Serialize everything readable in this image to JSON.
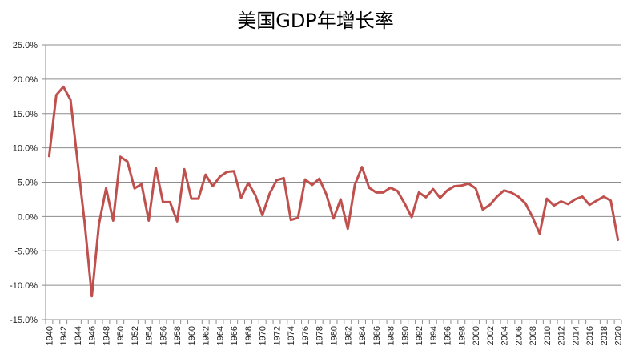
{
  "chart_data": {
    "type": "line",
    "title": "美国GDP年增长率",
    "xlabel": "",
    "ylabel": "",
    "ylim": [
      -15.0,
      25.0
    ],
    "y_ticks": [
      "25.0%",
      "20.0%",
      "15.0%",
      "10.0%",
      "5.0%",
      "0.0%",
      "-5.0%",
      "-10.0%",
      "-15.0%"
    ],
    "y_tick_values": [
      25,
      20,
      15,
      10,
      5,
      0,
      -5,
      -10,
      -15
    ],
    "x_tick_labels": [
      "1940",
      "1942",
      "1944",
      "1946",
      "1948",
      "1950",
      "1952",
      "1954",
      "1956",
      "1958",
      "1960",
      "1962",
      "1964",
      "1966",
      "1968",
      "1970",
      "1972",
      "1974",
      "1976",
      "1978",
      "1980",
      "1982",
      "1984",
      "1986",
      "1988",
      "1990",
      "1992",
      "1994",
      "1996",
      "1998",
      "2000",
      "2002",
      "2004",
      "2006",
      "2008",
      "2010",
      "2012",
      "2014",
      "2016",
      "2018",
      "2020"
    ],
    "grid": true,
    "legend": null,
    "line_color": "#C0504D",
    "x": [
      1940,
      1941,
      1942,
      1943,
      1944,
      1945,
      1946,
      1947,
      1948,
      1949,
      1950,
      1951,
      1952,
      1953,
      1954,
      1955,
      1956,
      1957,
      1958,
      1959,
      1960,
      1961,
      1962,
      1963,
      1964,
      1965,
      1966,
      1967,
      1968,
      1969,
      1970,
      1971,
      1972,
      1973,
      1974,
      1975,
      1976,
      1977,
      1978,
      1979,
      1980,
      1981,
      1982,
      1983,
      1984,
      1985,
      1986,
      1987,
      1988,
      1989,
      1990,
      1991,
      1992,
      1993,
      1994,
      1995,
      1996,
      1997,
      1998,
      1999,
      2000,
      2001,
      2002,
      2003,
      2004,
      2005,
      2006,
      2007,
      2008,
      2009,
      2010,
      2011,
      2012,
      2013,
      2014,
      2015,
      2016,
      2017,
      2018,
      2019,
      2020
    ],
    "series": [
      {
        "name": "美国GDP年增长率",
        "values": [
          8.8,
          17.7,
          18.9,
          17.0,
          8.0,
          -1.0,
          -11.6,
          -1.1,
          4.1,
          -0.6,
          8.7,
          8.0,
          4.1,
          4.7,
          -0.6,
          7.1,
          2.1,
          2.1,
          -0.7,
          6.9,
          2.6,
          2.6,
          6.1,
          4.4,
          5.8,
          6.5,
          6.6,
          2.7,
          4.9,
          3.1,
          0.2,
          3.3,
          5.3,
          5.6,
          -0.5,
          -0.2,
          5.4,
          4.6,
          5.5,
          3.2,
          -0.3,
          2.5,
          -1.8,
          4.6,
          7.2,
          4.2,
          3.5,
          3.5,
          4.2,
          3.7,
          1.9,
          -0.1,
          3.5,
          2.8,
          4.0,
          2.7,
          3.8,
          4.4,
          4.5,
          4.8,
          4.1,
          1.0,
          1.7,
          2.9,
          3.8,
          3.5,
          2.9,
          1.9,
          -0.1,
          -2.5,
          2.6,
          1.6,
          2.2,
          1.8,
          2.5,
          2.9,
          1.7,
          2.3,
          2.9,
          2.3,
          -3.4
        ]
      }
    ]
  }
}
